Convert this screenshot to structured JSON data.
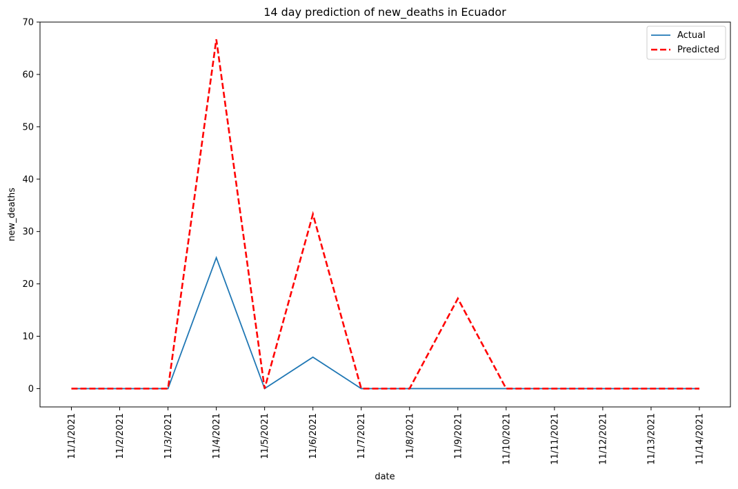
{
  "chart_data": {
    "type": "line",
    "title": "14 day prediction of new_deaths in Ecuador",
    "xlabel": "date",
    "ylabel": "new_deaths",
    "ylim": [
      -3.5,
      70
    ],
    "yticks": [
      0,
      10,
      20,
      30,
      40,
      50,
      60,
      70
    ],
    "x": [
      "11/1/2021",
      "11/2/2021",
      "11/3/2021",
      "11/4/2021",
      "11/5/2021",
      "11/6/2021",
      "11/7/2021",
      "11/8/2021",
      "11/9/2021",
      "11/10/2021",
      "11/11/2021",
      "11/12/2021",
      "11/13/2021",
      "11/14/2021"
    ],
    "series": [
      {
        "name": "Actual",
        "color": "#1f77b4",
        "style": "solid",
        "values": [
          0,
          0,
          0,
          25,
          0,
          6,
          0,
          0,
          0,
          0,
          0,
          0,
          0,
          0
        ]
      },
      {
        "name": "Predicted",
        "color": "#ff0000",
        "style": "dashed",
        "values": [
          0,
          0,
          0,
          66.7,
          0,
          33.3,
          0,
          0,
          17.2,
          0,
          0,
          0,
          0,
          0
        ]
      }
    ],
    "legend": "top-right",
    "grid": false
  }
}
